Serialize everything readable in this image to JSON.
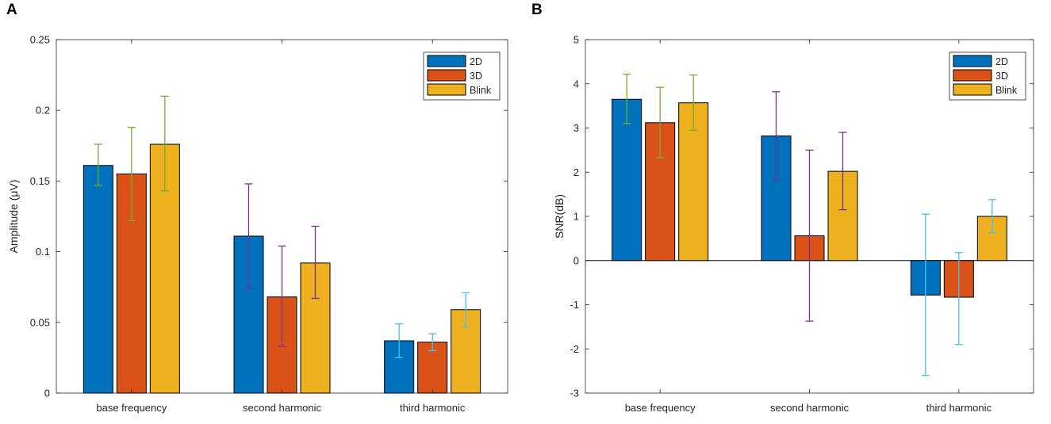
{
  "panels": [
    {
      "label": "A",
      "chart_data": {
        "type": "bar",
        "categories": [
          "base frequency",
          "second harmonic",
          "third harmonic"
        ],
        "series": [
          {
            "name": "2D",
            "color": "#0072BD",
            "values": [
              0.161,
              0.111,
              0.037
            ],
            "err_low": [
              0.147,
              0.074,
              0.025
            ],
            "err_high": [
              0.176,
              0.148,
              0.049
            ]
          },
          {
            "name": "3D",
            "color": "#D95319",
            "values": [
              0.155,
              0.068,
              0.036
            ],
            "err_low": [
              0.122,
              0.033,
              0.03
            ],
            "err_high": [
              0.188,
              0.104,
              0.042
            ]
          },
          {
            "name": "Blink",
            "color": "#EDB120",
            "values": [
              0.176,
              0.092,
              0.059
            ],
            "err_low": [
              0.143,
              0.067,
              0.047
            ],
            "err_high": [
              0.21,
              0.118,
              0.071
            ]
          }
        ],
        "error_bar_colors": [
          "#77AC30",
          "#7E2F8E",
          "#4DBEEE"
        ],
        "title": "",
        "xlabel": "",
        "ylabel": "Amplitude (μV)",
        "ylim": [
          0,
          0.25
        ],
        "yticks": [
          0,
          0.05,
          0.1,
          0.15,
          0.2,
          0.25
        ],
        "ytick_labels": [
          "0",
          "0.05",
          "0.1",
          "0.15",
          "0.2",
          "0.25"
        ],
        "legend_position": "top-right",
        "grid": false
      }
    },
    {
      "label": "B",
      "chart_data": {
        "type": "bar",
        "categories": [
          "base frequency",
          "second harmonic",
          "third harmonic"
        ],
        "series": [
          {
            "name": "2D",
            "color": "#0072BD",
            "values": [
              3.65,
              2.82,
              -0.78
            ],
            "err_low": [
              3.1,
              1.82,
              -2.6
            ],
            "err_high": [
              4.22,
              3.82,
              1.05
            ]
          },
          {
            "name": "3D",
            "color": "#D95319",
            "values": [
              3.12,
              0.56,
              -0.83
            ],
            "err_low": [
              2.33,
              -1.37,
              -1.9
            ],
            "err_high": [
              3.92,
              2.5,
              0.18
            ]
          },
          {
            "name": "Blink",
            "color": "#EDB120",
            "values": [
              3.57,
              2.02,
              1.0
            ],
            "err_low": [
              2.95,
              1.15,
              0.63
            ],
            "err_high": [
              4.2,
              2.9,
              1.38
            ]
          }
        ],
        "error_bar_colors": [
          "#77AC30",
          "#7E2F8E",
          "#4DBEEE"
        ],
        "title": "",
        "xlabel": "",
        "ylabel": "SNR(dB)",
        "ylim": [
          -3,
          5
        ],
        "yticks": [
          -3,
          -2,
          -1,
          0,
          1,
          2,
          3,
          4,
          5
        ],
        "ytick_labels": [
          "-3",
          "-2",
          "-1",
          "0",
          "1",
          "2",
          "3",
          "4",
          "5"
        ],
        "legend_position": "top-right",
        "grid": false,
        "zero_line": true
      }
    }
  ]
}
